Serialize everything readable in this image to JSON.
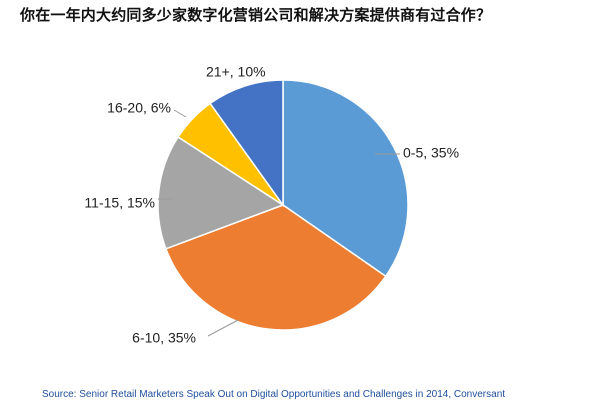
{
  "chart_data": {
    "type": "pie",
    "title": "你在一年内大约同多少家数字化营销公司和解决方案提供商有过合作？",
    "slices": [
      {
        "label": "0-5, 35%",
        "value": 35,
        "color": "#5b9bd5"
      },
      {
        "label": "6-10, 35%",
        "value": 35,
        "color": "#ed7d31"
      },
      {
        "label": "11-15, 15%",
        "value": 15,
        "color": "#a5a5a5"
      },
      {
        "label": "16-20, 6%",
        "value": 6,
        "color": "#ffc000"
      },
      {
        "label": "21+, 10%",
        "value": 10,
        "color": "#4472c4"
      }
    ],
    "legend": "none"
  },
  "source": "Source: Senior Retail Marketers Speak Out on Digital Opportunities and Challenges in 2014, Conversant"
}
